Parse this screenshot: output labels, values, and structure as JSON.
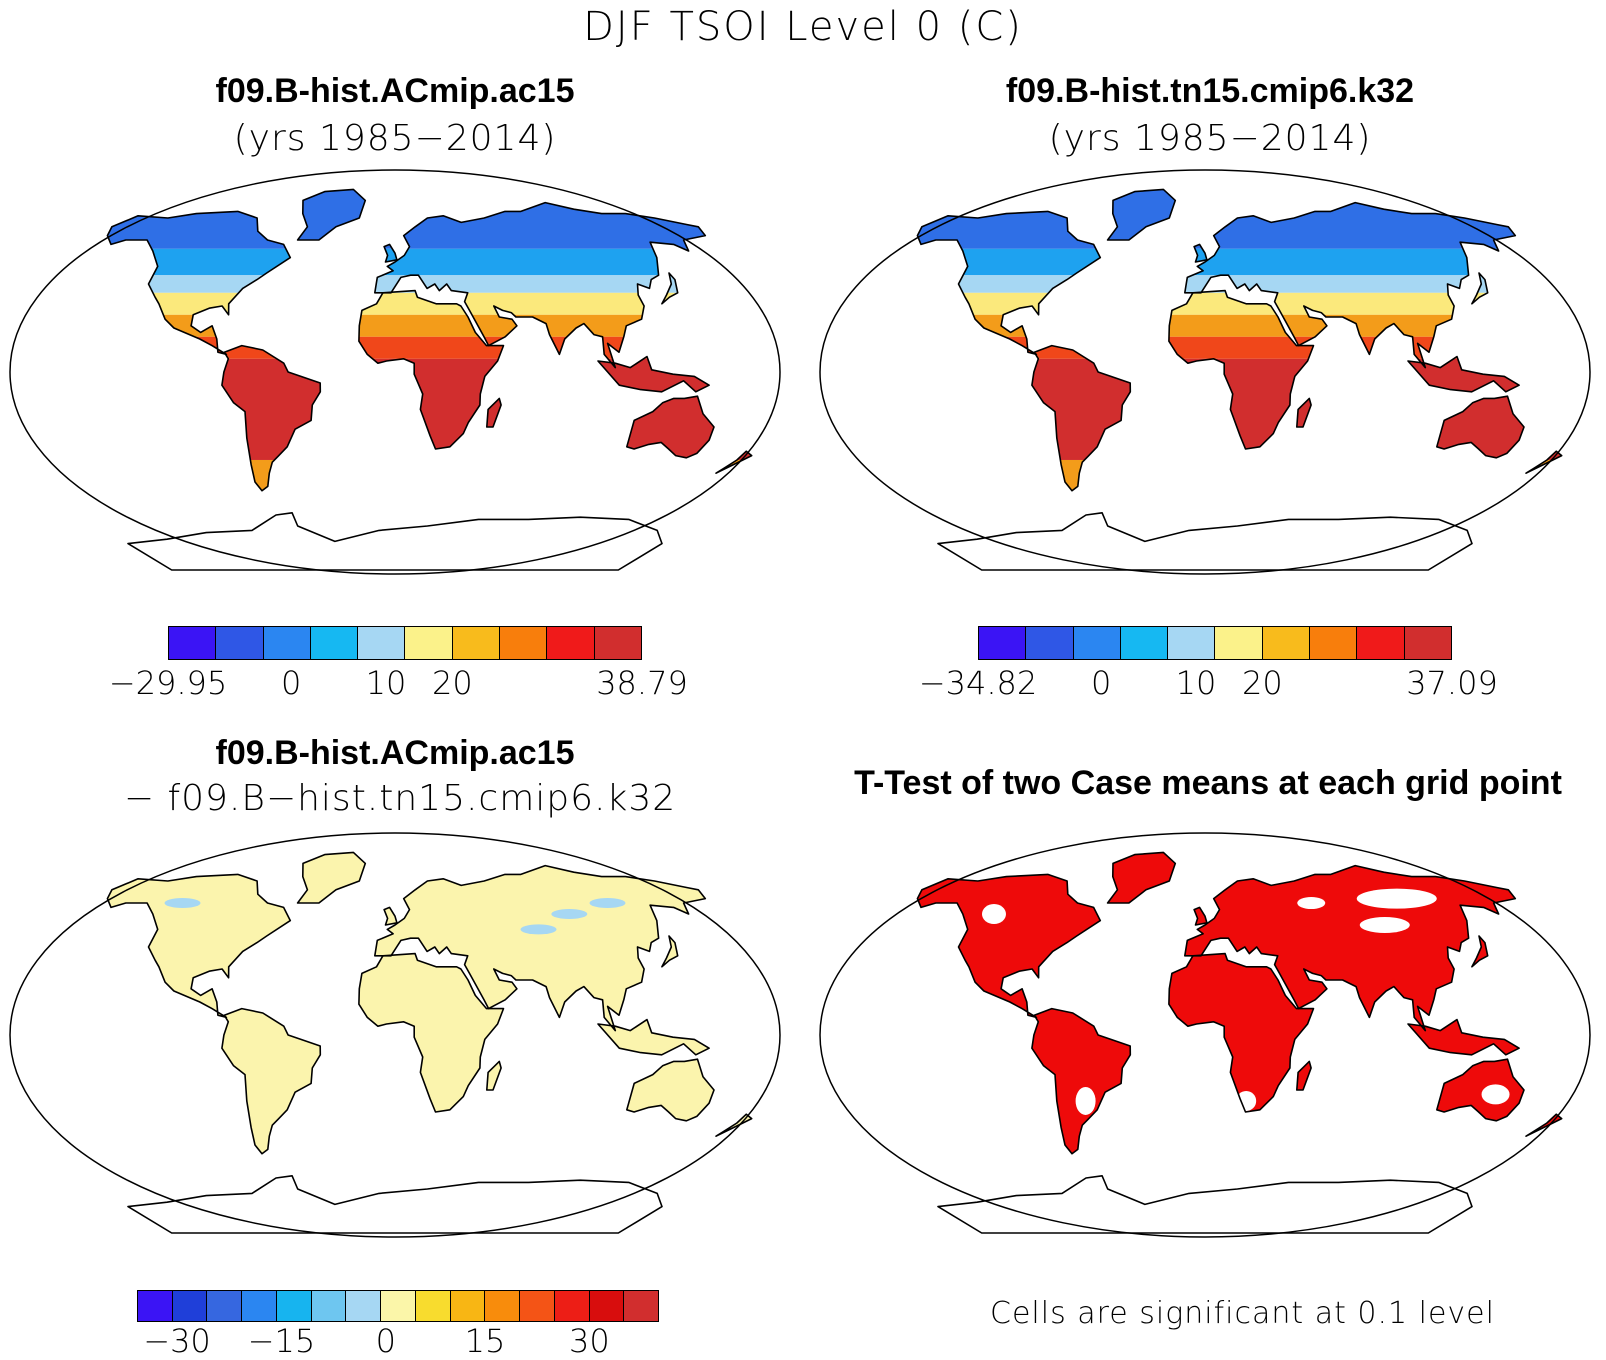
{
  "figure": {
    "title": "DJF TSOI Level 0 (C)"
  },
  "panels": [
    {
      "id": "case1",
      "title": "f09.B-hist.ACmip.ac15",
      "subtitle": "(yrs 1985−2014)",
      "colorbar": {
        "colors": [
          "#3b14f5",
          "#2f57e6",
          "#2b86f1",
          "#16b8f2",
          "#a6d7f3",
          "#fbf28a",
          "#f8bb1c",
          "#f87e0c",
          "#f01a1a",
          "#d12e2e"
        ],
        "tick_labels": [
          "−29.95",
          "0",
          "10",
          "20",
          "38.79"
        ],
        "min": -29.95,
        "max": 38.79
      }
    },
    {
      "id": "case2",
      "title": "f09.B-hist.tn15.cmip6.k32",
      "subtitle": "(yrs 1985−2014)",
      "colorbar": {
        "colors": [
          "#3b14f5",
          "#2f57e6",
          "#2b86f1",
          "#16b8f2",
          "#a6d7f3",
          "#fbf28a",
          "#f8bb1c",
          "#f87e0c",
          "#f01a1a",
          "#d12e2e"
        ],
        "tick_labels": [
          "−34.82",
          "0",
          "10",
          "20",
          "37.09"
        ],
        "min": -34.82,
        "max": 37.09
      }
    },
    {
      "id": "difference",
      "title": "f09.B-hist.ACmip.ac15",
      "subtitle": "− f09.B−hist.tn15.cmip6.k32",
      "colorbar": {
        "colors": [
          "#3b14f5",
          "#1f3fd9",
          "#3667e0",
          "#2b86f1",
          "#17b4ef",
          "#6ec6f0",
          "#a6d7f3",
          "#fbf6a9",
          "#f8dc2e",
          "#f8b614",
          "#f88c0c",
          "#f45416",
          "#ed1e16",
          "#d80d0d",
          "#d12e2e"
        ],
        "tick_labels": [
          "−30",
          "−15",
          "0",
          "15",
          "30"
        ]
      }
    },
    {
      "id": "ttest",
      "title": "T-Test of two Case means at each grid point",
      "note": "Cells are significant at 0.1 level",
      "significant_color": "#ee0a0a"
    }
  ],
  "map_colors": {
    "coast": "#000000",
    "cold": "#2f6fe6",
    "cool": "#1ea2f0",
    "mild": "#a6d7f3",
    "warm": "#fbe97c",
    "hot": "#f39c1a",
    "hotter": "#f0471a",
    "hottest": "#d12e2e",
    "diff": "#fbf4ad",
    "diff_blue": "#a6d7f3",
    "sig": "#ee0a0a"
  }
}
